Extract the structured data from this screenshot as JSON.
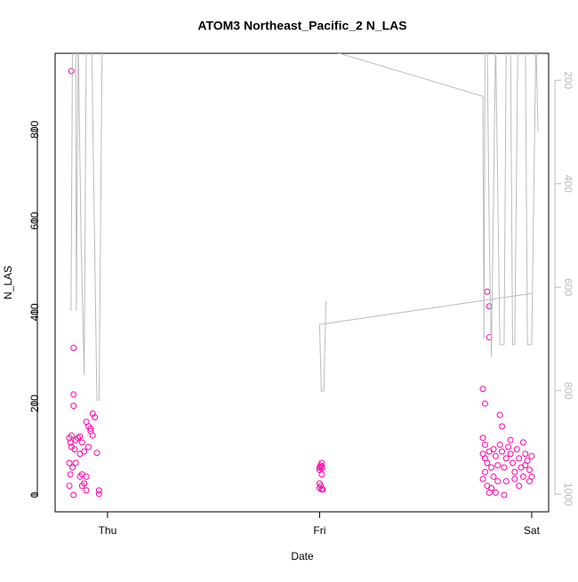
{
  "chart_data": {
    "type": "scatter",
    "title": "ATOM3 Northeast_Pacific_2 N_LAS",
    "x_label": "Date",
    "y_label": "N_LAS",
    "xlim": [
      -0.247,
      2.08
    ],
    "xticks": [
      {
        "value": 0,
        "label": "Thu"
      },
      {
        "value": 1,
        "label": "Fri"
      },
      {
        "value": 2,
        "label": "Sat"
      }
    ],
    "ylim": [
      -37,
      967
    ],
    "yticks": [
      0,
      200,
      400,
      600,
      800
    ],
    "y2lim": [
      1034,
      148
    ],
    "y2ticks": [
      200,
      400,
      600,
      800,
      1000
    ],
    "series": [
      {
        "type": "scatter",
        "color": "#ff00aa",
        "x": [
          -0.17,
          -0.16,
          -0.16,
          -0.16,
          -0.17,
          -0.18,
          -0.175,
          -0.17,
          -0.18,
          -0.175,
          -0.18,
          -0.16,
          -0.15,
          -0.14,
          -0.13,
          -0.12,
          -0.15,
          -0.13,
          -0.11,
          -0.1,
          -0.12,
          -0.11,
          -0.09,
          -0.08,
          -0.07,
          -0.06,
          -0.07,
          -0.08,
          -0.05,
          -0.04,
          -0.04,
          -0.1,
          -0.13,
          -0.155,
          -0.165,
          -0.1,
          -0.09,
          -0.12,
          1.0,
          1.005,
          1.01,
          1.0,
          1.01,
          1.0,
          1.0,
          1.01,
          1.015,
          1.005,
          1.01,
          1.01,
          1.79,
          1.8,
          1.8,
          1.77,
          1.78,
          1.77,
          1.78,
          1.77,
          1.78,
          1.79,
          1.78,
          1.77,
          1.79,
          1.8,
          1.81,
          1.82,
          1.83,
          1.82,
          1.84,
          1.83,
          1.85,
          1.86,
          1.85,
          1.86,
          1.87,
          1.88,
          1.87,
          1.89,
          1.9,
          1.9,
          1.91,
          1.92,
          1.92,
          1.93,
          1.94,
          1.95,
          1.96,
          1.96,
          1.97,
          1.98,
          1.99,
          2.0,
          2.0,
          1.99,
          1.97,
          1.94,
          1.88,
          1.84,
          1.81,
          1.8
        ],
        "values": [
          928,
          322,
          220,
          195,
          130,
          125,
          115,
          105,
          70,
          45,
          20,
          0,
          120,
          125,
          128,
          115,
          70,
          40,
          25,
          10,
          45,
          95,
          150,
          140,
          178,
          170,
          130,
          145,
          92,
          10,
          2,
          40,
          90,
          100,
          60,
          160,
          105,
          20,
          60,
          65,
          70,
          55,
          45,
          25,
          15,
          12,
          12,
          20,
          62,
          58,
          445,
          413,
          345,
          232,
          200,
          125,
          110,
          90,
          80,
          70,
          50,
          35,
          20,
          5,
          60,
          100,
          85,
          40,
          30,
          5,
          175,
          150,
          110,
          95,
          60,
          30,
          0,
          105,
          120,
          90,
          70,
          50,
          35,
          100,
          80,
          60,
          40,
          115,
          90,
          75,
          55,
          40,
          85,
          30,
          65,
          20,
          80,
          65,
          15,
          95
        ]
      },
      {
        "type": "line",
        "axis": "y2",
        "color": "#bbbbbb",
        "x": [
          -0.172,
          -0.165,
          -0.15,
          -0.147,
          -0.138,
          -0.125,
          -0.11,
          -0.1,
          -0.075,
          -0.05,
          -0.04,
          -0.025,
          0.7,
          1.77,
          1.775,
          1.78,
          1.79,
          1.8,
          1.81,
          1.83,
          1.85,
          1.87,
          1.88,
          1.9,
          1.91,
          1.92,
          1.935,
          1.97,
          1.98,
          2.0,
          2.02,
          2.03,
          null,
          1.03,
          1.02,
          1.008,
          1.0,
          2.0
        ],
        "values": [
          646,
          120,
          120,
          646,
          120,
          500,
          770,
          120,
          120,
          818,
          818,
          120,
          100,
          231,
          700,
          120,
          120,
          500,
          735,
          120,
          711,
          711,
          120,
          120,
          711,
          711,
          120,
          120,
          711,
          711,
          120,
          300,
          null,
          626,
          801,
          801,
          672,
          612
        ]
      }
    ]
  }
}
